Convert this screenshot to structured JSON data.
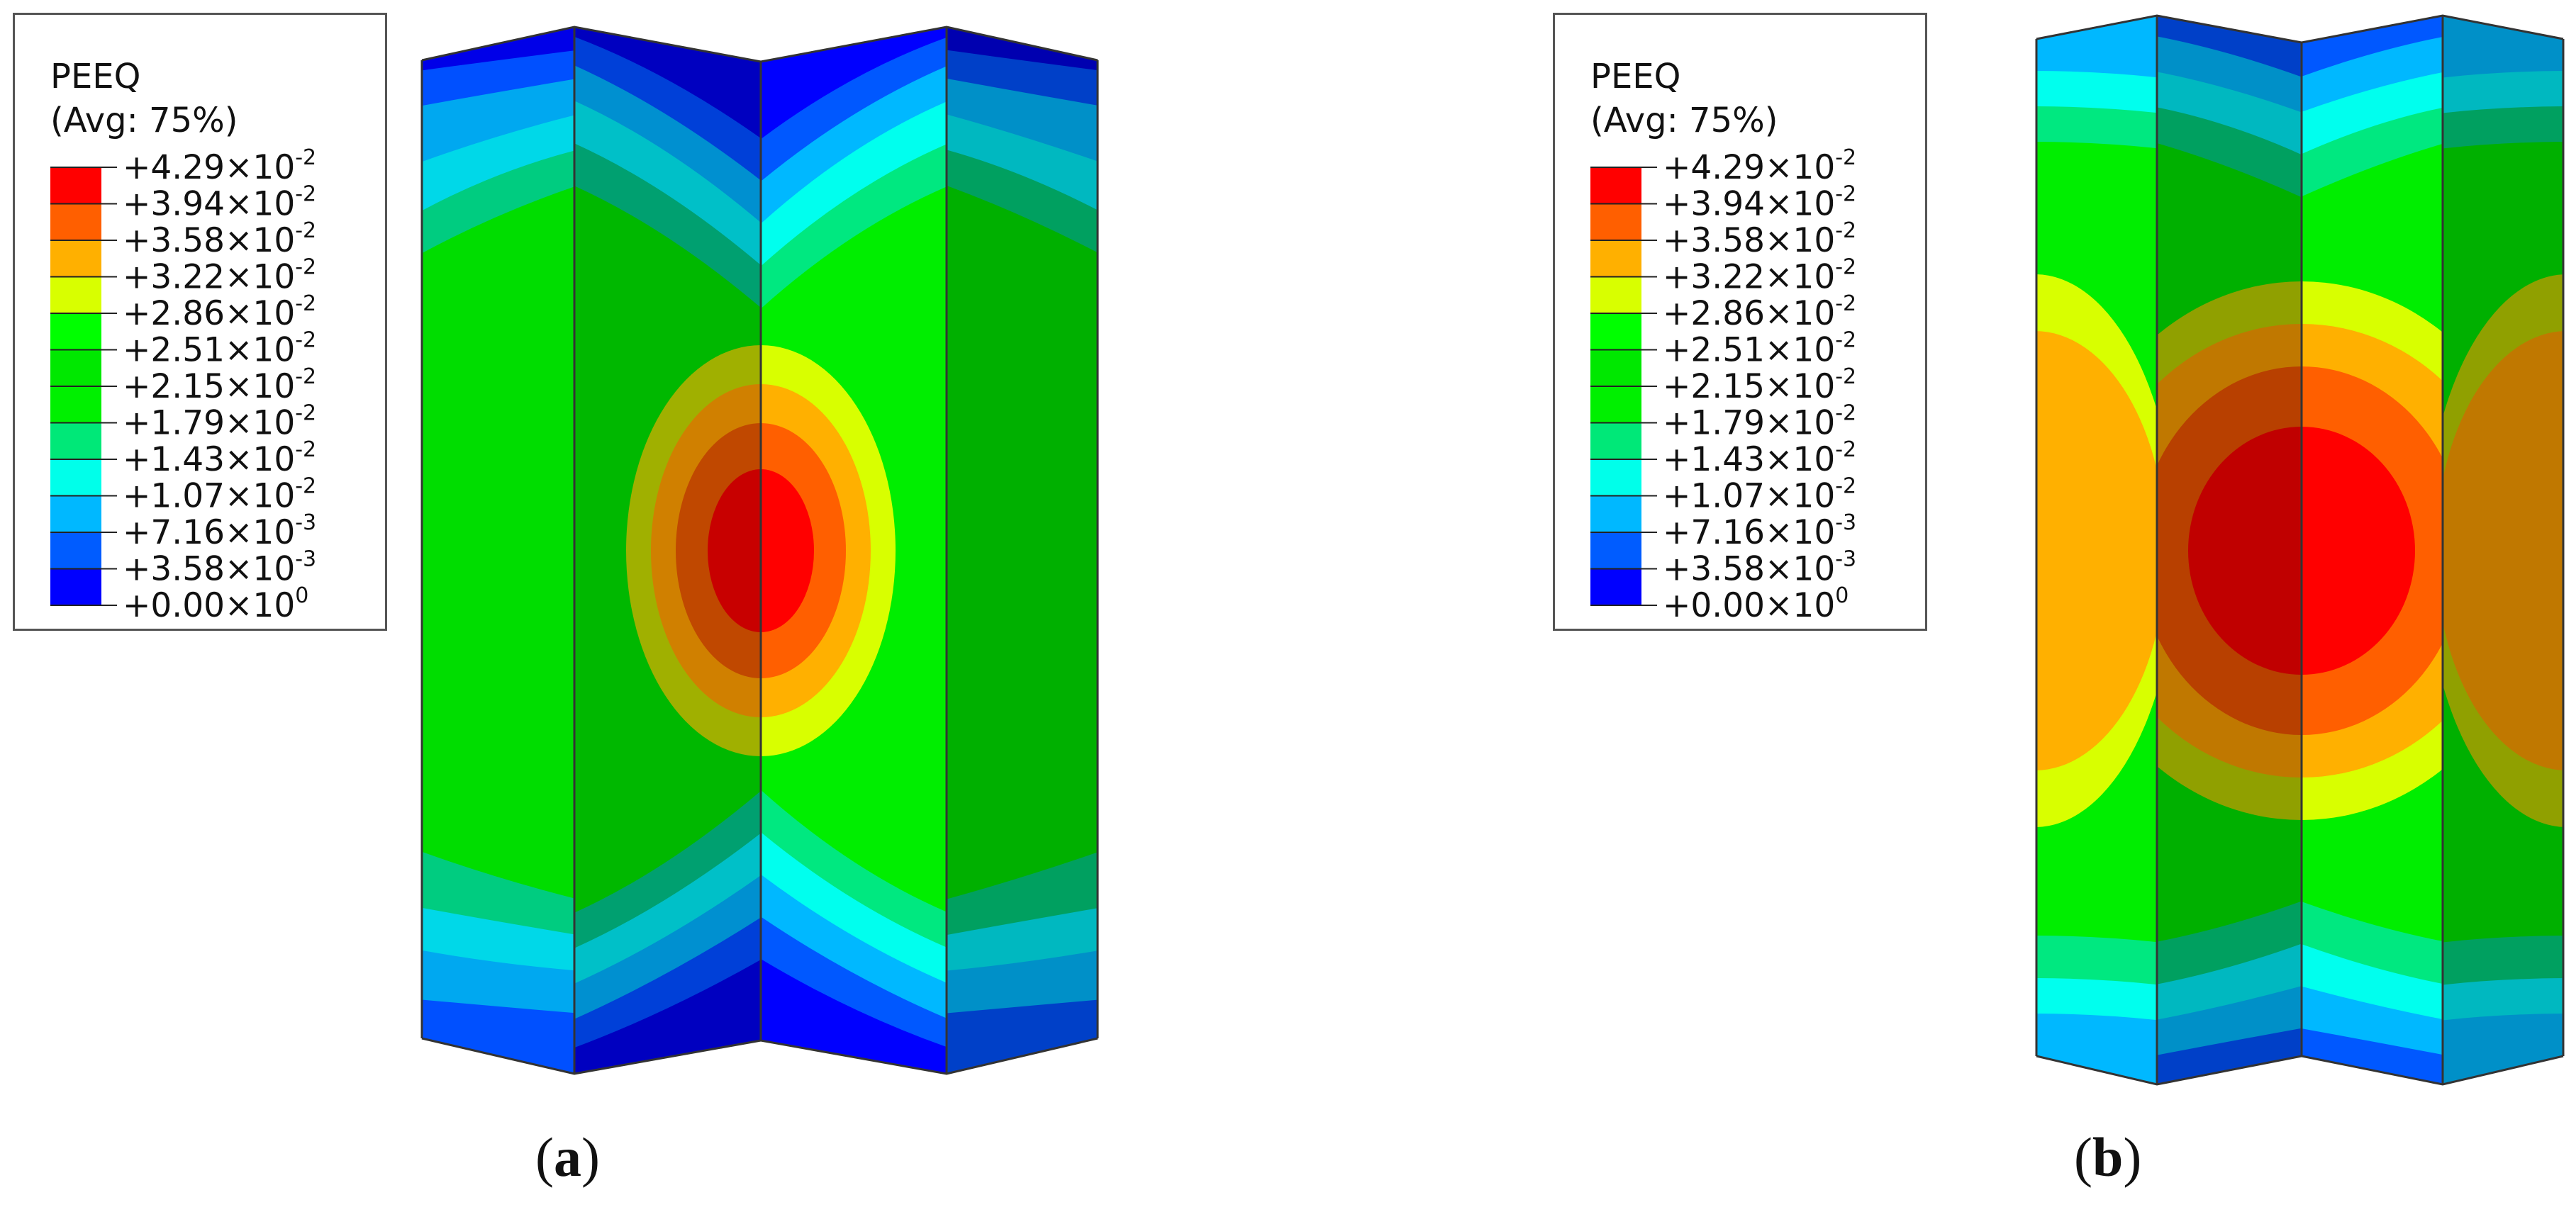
{
  "legend": {
    "title": "PEEQ",
    "subtitle": "(Avg: 75%)",
    "entries": [
      {
        "mantissa": "+4.29",
        "base": "×10",
        "exp": "-2",
        "color": "#ff0000"
      },
      {
        "mantissa": "+3.94",
        "base": "×10",
        "exp": "-2",
        "color": "#ff5f00"
      },
      {
        "mantissa": "+3.58",
        "base": "×10",
        "exp": "-2",
        "color": "#ffb000"
      },
      {
        "mantissa": "+3.22",
        "base": "×10",
        "exp": "-2",
        "color": "#d8ff00"
      },
      {
        "mantissa": "+2.86",
        "base": "×10",
        "exp": "-2",
        "color": "#00ff00"
      },
      {
        "mantissa": "+2.51",
        "base": "×10",
        "exp": "-2",
        "color": "#00e800"
      },
      {
        "mantissa": "+2.15",
        "base": "×10",
        "exp": "-2",
        "color": "#00f000"
      },
      {
        "mantissa": "+1.79",
        "base": "×10",
        "exp": "-2",
        "color": "#00e878"
      },
      {
        "mantissa": "+1.43",
        "base": "×10",
        "exp": "-2",
        "color": "#00ffea"
      },
      {
        "mantissa": "+1.07",
        "base": "×10",
        "exp": "-2",
        "color": "#00b8ff"
      },
      {
        "mantissa": "+7.16",
        "base": "×10",
        "exp": "-3",
        "color": "#005cff"
      },
      {
        "mantissa": "+3.58",
        "base": "×10",
        "exp": "-3",
        "color": "#0000ff"
      },
      {
        "mantissa": "+0.00",
        "base": "×10",
        "exp": "0",
        "color": null
      }
    ]
  },
  "panels": [
    {
      "id": "a",
      "caption": "a"
    },
    {
      "id": "b",
      "caption": "b"
    }
  ]
}
